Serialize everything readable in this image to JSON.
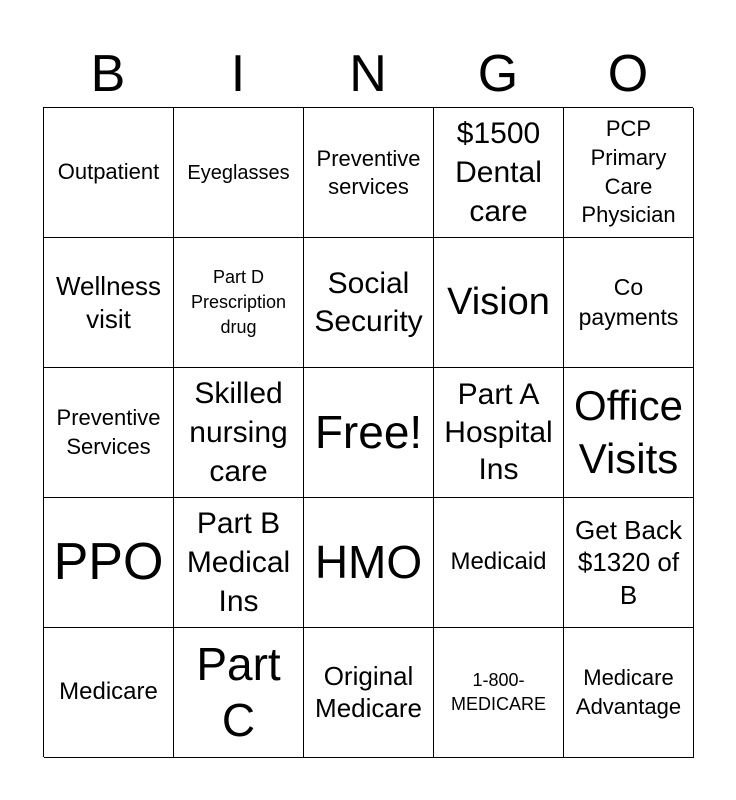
{
  "header": [
    "B",
    "I",
    "N",
    "G",
    "O"
  ],
  "cells": [
    "Outpatient",
    "Eyeglasses",
    "Preventive\nservices",
    "$1500\nDental\ncare",
    "PCP\nPrimary\nCare\nPhysician",
    "Wellness\nvisit",
    "Part D\nPrescription\ndrug",
    "Social\nSecurity",
    "Vision",
    "Co\npayments",
    "Preventive\nServices",
    "Skilled\nnursing\ncare",
    "Free!",
    "Part A\nHospital\nIns",
    "Office\nVisits",
    "PPO",
    "Part B\nMedical\nIns",
    "HMO",
    "Medicaid",
    "Get Back\n$1320 of\nB",
    "Medicare",
    "Part\nC",
    "Original\nMedicare",
    "1-800-\nMEDICARE",
    "Medicare\nAdvantage"
  ]
}
